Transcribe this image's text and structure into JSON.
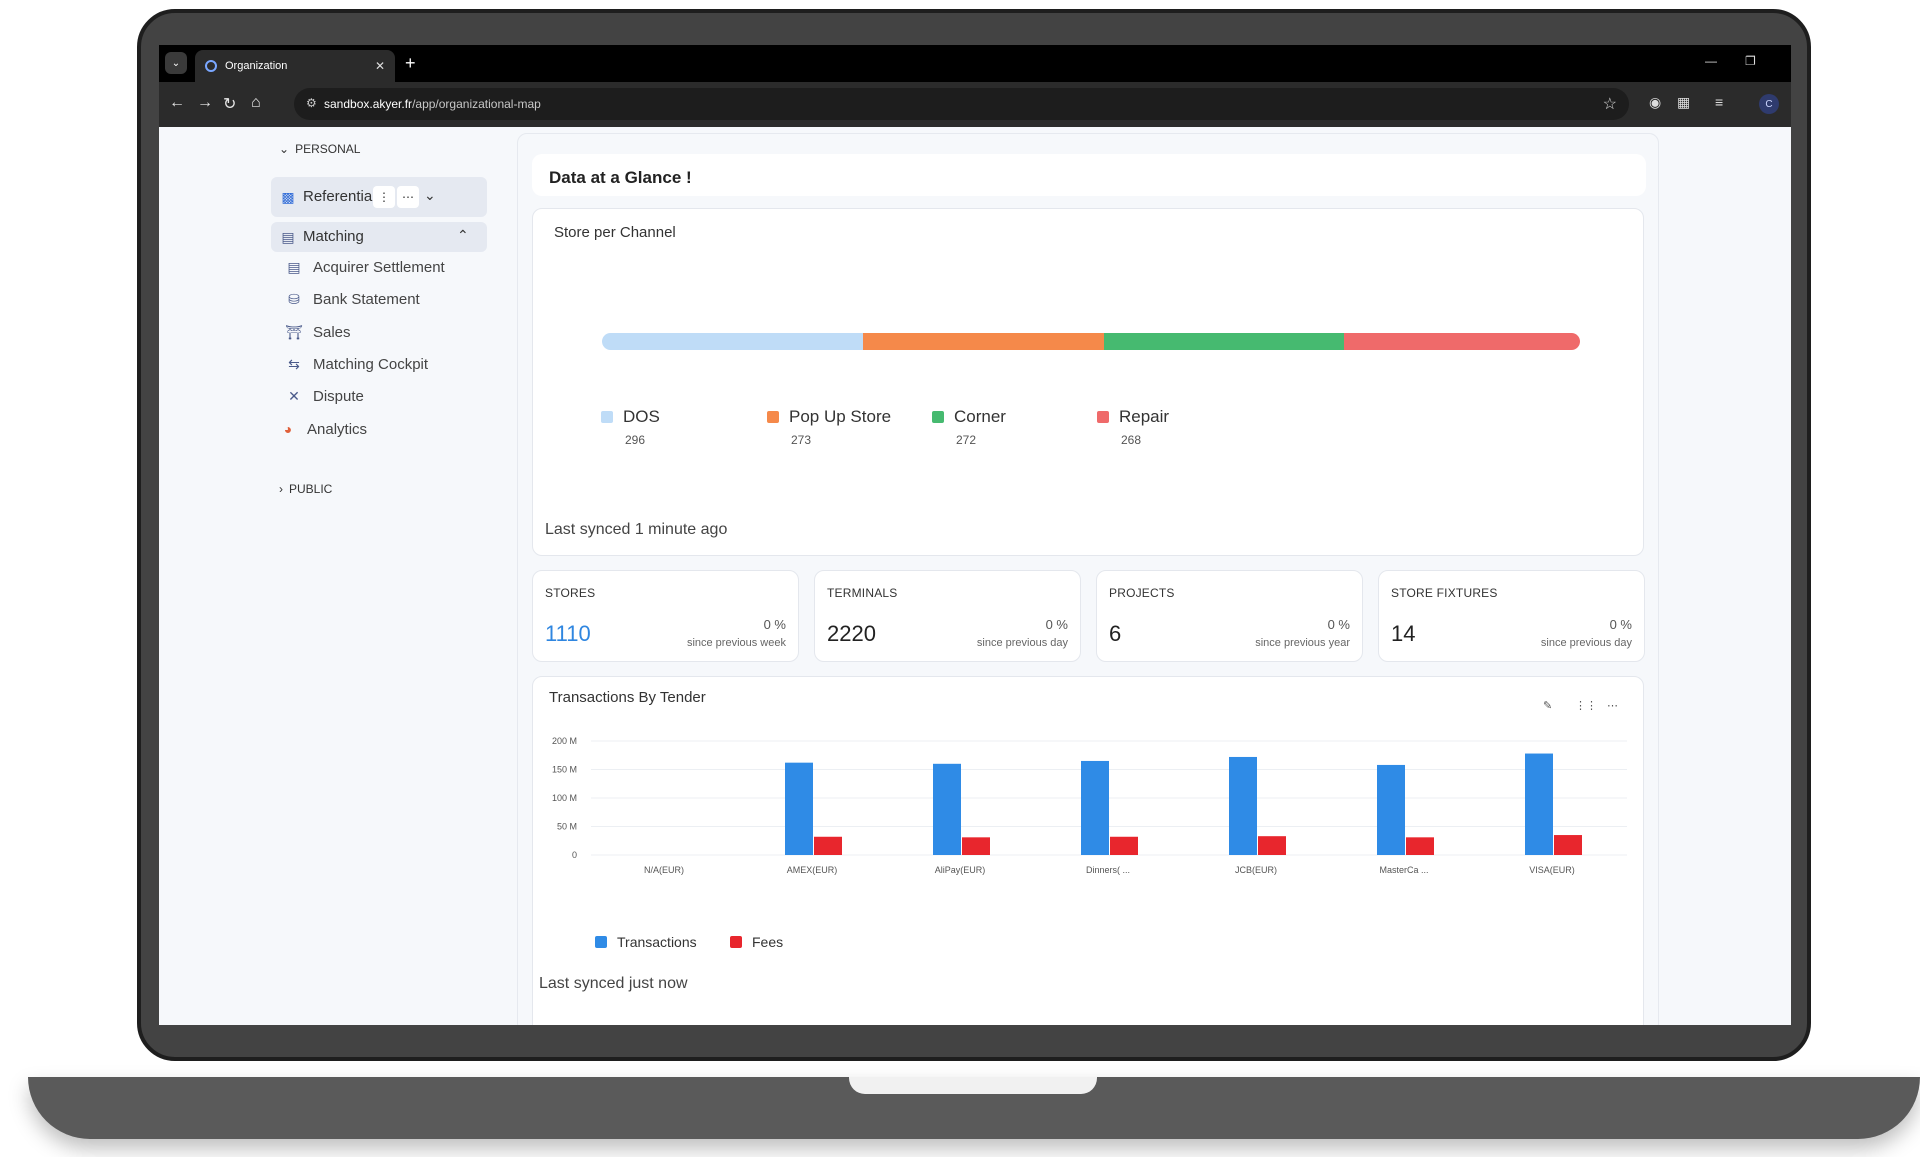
{
  "browser": {
    "tab_title": "Organization",
    "url_host": "sandbox.akyer.fr",
    "url_path": "/app/organizational-map",
    "profile_initial": "C"
  },
  "sidebar": {
    "personal_label": "PERSONAL",
    "public_label": "PUBLIC",
    "referential_label": "Referential",
    "matching_label": "Matching",
    "sub_items": [
      {
        "label": "Acquirer Settlement",
        "icon": "document-icon"
      },
      {
        "label": "Bank Statement",
        "icon": "database-icon"
      },
      {
        "label": "Sales",
        "icon": "store-icon"
      },
      {
        "label": "Matching Cockpit",
        "icon": "swap-icon"
      },
      {
        "label": "Dispute",
        "icon": "x-icon"
      }
    ],
    "analytics_label": "Analytics"
  },
  "main": {
    "glance_title": "Data at a Glance !",
    "store_channel": {
      "title": "Store per Channel",
      "segments": [
        {
          "name": "DOS",
          "count": "296",
          "color": "#bfdcf7"
        },
        {
          "name": "Pop Up Store",
          "count": "273",
          "color": "#f5894a"
        },
        {
          "name": "Corner",
          "count": "272",
          "color": "#46ba70"
        },
        {
          "name": "Repair",
          "count": "268",
          "color": "#ef6a6a"
        }
      ],
      "synced": "Last synced 1 minute ago"
    },
    "stats": [
      {
        "title": "STORES",
        "value": "1110",
        "pct": "0 %",
        "since": "since previous week",
        "value_color": "#2f86e0"
      },
      {
        "title": "TERMINALS",
        "value": "2220",
        "pct": "0 %",
        "since": "since previous day",
        "value_color": "#222222"
      },
      {
        "title": "PROJECTS",
        "value": "6",
        "pct": "0 %",
        "since": "since previous year",
        "value_color": "#222222"
      },
      {
        "title": "STORE FIXTURES",
        "value": "14",
        "pct": "0 %",
        "since": "since previous day",
        "value_color": "#222222"
      }
    ],
    "tender": {
      "title": "Transactions By Tender",
      "synced": "Last synced just now"
    }
  },
  "chart_data": {
    "type": "bar",
    "title": "Transactions By Tender",
    "categories": [
      "N/A(EUR)",
      "AMEX(EUR)",
      "AliPay(EUR)",
      "Dinners( ...",
      "JCB(EUR)",
      "MasterCa ...",
      "VISA(EUR)"
    ],
    "series": [
      {
        "name": "Transactions",
        "color": "#2f8be6",
        "values": [
          0,
          162,
          160,
          165,
          172,
          158,
          178
        ]
      },
      {
        "name": "Fees",
        "color": "#e8262d",
        "values": [
          0,
          32,
          31,
          32,
          33,
          31,
          35
        ]
      }
    ],
    "y_ticks": [
      "0",
      "50 M",
      "100 M",
      "150 M",
      "200 M"
    ],
    "ylim": [
      0,
      200
    ],
    "grid": true,
    "legend": "bottom-left"
  }
}
